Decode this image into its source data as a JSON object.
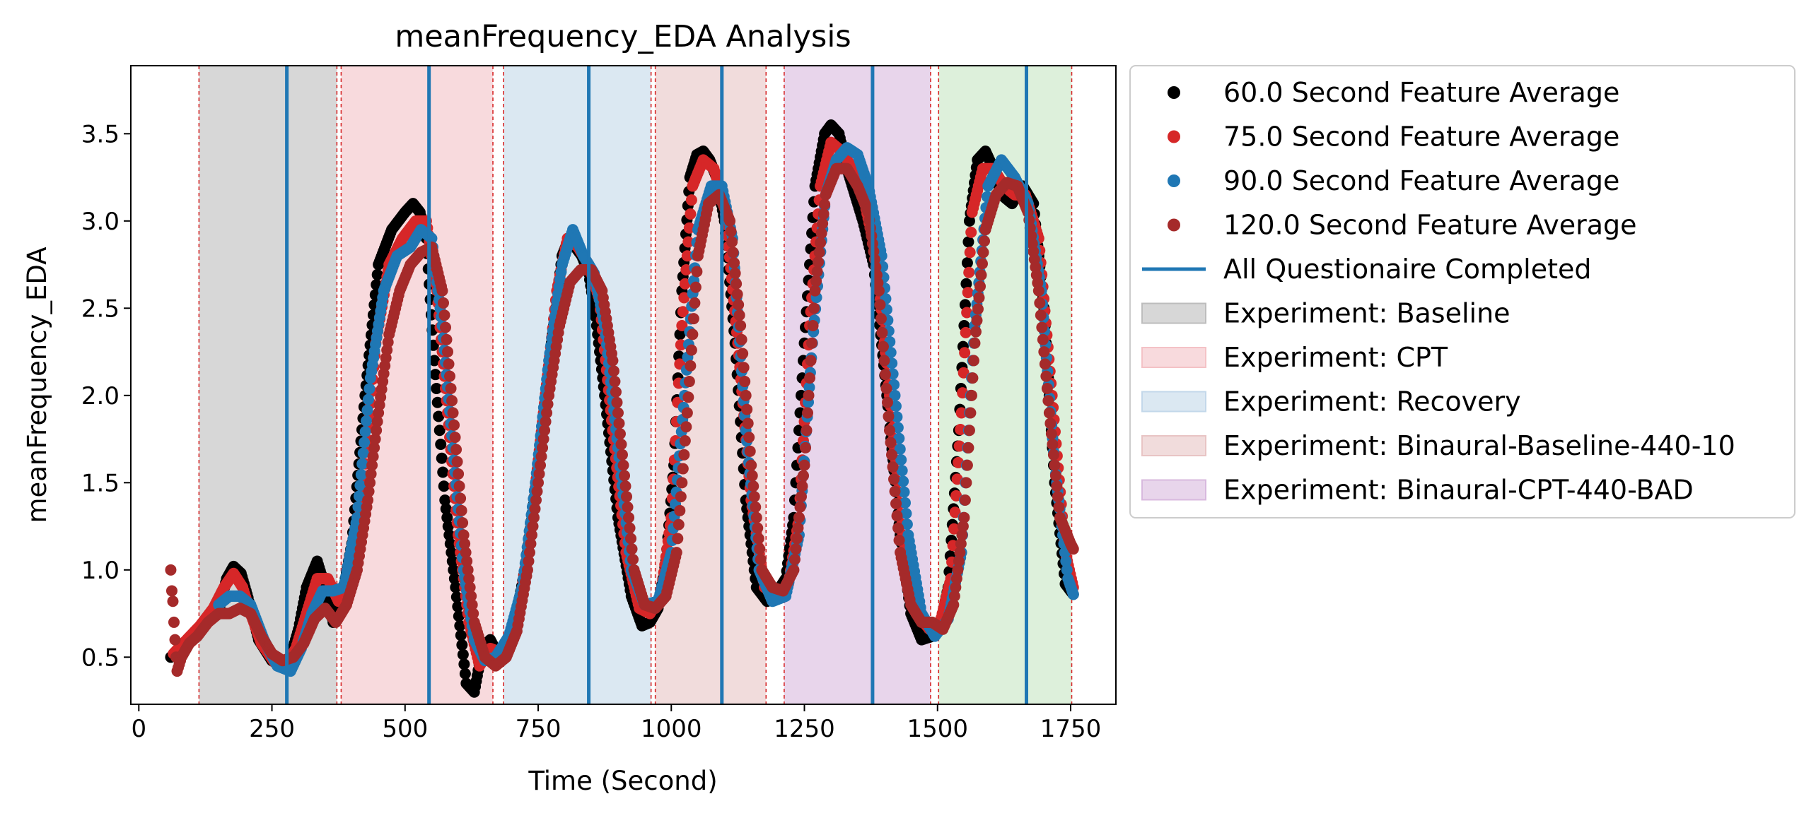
{
  "chart_data": {
    "type": "scatter",
    "title": "meanFrequency_EDA Analysis",
    "xlabel": "Time (Second)",
    "ylabel": "meanFrequency_EDA",
    "xlim": [
      -15,
      1835
    ],
    "ylim": [
      0.23,
      3.89
    ],
    "x_ticks": [
      0,
      250,
      500,
      750,
      1000,
      1250,
      1500,
      1750
    ],
    "x_tick_labels": [
      "0",
      "250",
      "500",
      "750",
      "1000",
      "1250",
      "1500",
      "1750"
    ],
    "y_ticks": [
      0.5,
      1.0,
      1.5,
      2.0,
      2.5,
      3.0,
      3.5
    ],
    "y_tick_labels": [
      "0.5",
      "1.0",
      "1.5",
      "2.0",
      "2.5",
      "3.0",
      "3.5"
    ],
    "grid": false,
    "legend_position": "outside-right",
    "regions": [
      {
        "label": "Experiment: Baseline",
        "start": 113,
        "end": 372,
        "color": "#bdbdbd"
      },
      {
        "label": "Experiment: CPT",
        "start": 380,
        "end": 665,
        "color": "#f4c2c6"
      },
      {
        "label": "Experiment: Recovery",
        "start": 685,
        "end": 962,
        "color": "#c3d8ea"
      },
      {
        "label": "Experiment: Binaural-Baseline-440-10",
        "start": 970,
        "end": 1178,
        "color": "#e8c4c4"
      },
      {
        "label": "Experiment: Binaural-CPT-440-BAD",
        "start": 1212,
        "end": 1487,
        "color": "#d8b9de"
      },
      {
        "label": "",
        "start": 1502,
        "end": 1752,
        "color": "#c7e6c3"
      }
    ],
    "region_boundaries": [
      113,
      372,
      380,
      665,
      685,
      962,
      970,
      1178,
      1212,
      1487,
      1502,
      1752
    ],
    "questionnaire_completed_x": [
      278,
      545,
      845,
      1095,
      1378,
      1667
    ],
    "series": [
      {
        "name": "60.0 Second Feature Average",
        "color": "#000000",
        "x": [
          60,
          90,
          110,
          135,
          150,
          165,
          178,
          192,
          205,
          225,
          250,
          270,
          285,
          300,
          315,
          335,
          350,
          365,
          380,
          400,
          425,
          450,
          475,
          500,
          515,
          528,
          540,
          555,
          575,
          595,
          615,
          630,
          645,
          660,
          680,
          700,
          725,
          750,
          775,
          795,
          808,
          820,
          832,
          845,
          858,
          875,
          900,
          925,
          945,
          960,
          975,
          990,
          1005,
          1020,
          1035,
          1048,
          1060,
          1072,
          1085,
          1100,
          1120,
          1140,
          1160,
          1180,
          1200,
          1215,
          1230,
          1250,
          1270,
          1288,
          1300,
          1315,
          1330,
          1345,
          1360,
          1380,
          1405,
          1430,
          1450,
          1470,
          1490,
          1505,
          1520,
          1540,
          1560,
          1575,
          1590,
          1605,
          1620,
          1640,
          1660,
          1680,
          1700,
          1720,
          1740,
          1755
        ],
        "y": [
          0.5,
          0.58,
          0.65,
          0.72,
          0.76,
          0.95,
          1.02,
          0.98,
          0.84,
          0.6,
          0.48,
          0.45,
          0.5,
          0.66,
          0.9,
          1.05,
          0.9,
          0.7,
          0.82,
          1.15,
          2.0,
          2.75,
          2.95,
          3.05,
          3.1,
          3.05,
          2.9,
          2.2,
          1.4,
          0.9,
          0.35,
          0.3,
          0.55,
          0.6,
          0.48,
          0.6,
          1.0,
          1.6,
          2.3,
          2.8,
          2.9,
          2.85,
          2.8,
          2.7,
          2.45,
          2.0,
          1.3,
          0.85,
          0.68,
          0.7,
          0.78,
          1.05,
          1.6,
          2.6,
          3.25,
          3.38,
          3.4,
          3.35,
          3.25,
          3.0,
          2.3,
          1.4,
          0.9,
          0.82,
          0.88,
          0.95,
          1.3,
          2.3,
          3.2,
          3.5,
          3.55,
          3.5,
          3.3,
          3.15,
          3.0,
          2.75,
          2.0,
          1.2,
          0.75,
          0.6,
          0.62,
          0.68,
          0.9,
          1.8,
          3.0,
          3.35,
          3.4,
          3.3,
          3.15,
          3.1,
          3.2,
          3.1,
          2.5,
          1.5,
          0.92,
          0.86
        ]
      },
      {
        "name": "75.0 Second Feature Average",
        "color": "#d62728",
        "x": [
          65,
          90,
          115,
          140,
          160,
          178,
          195,
          210,
          230,
          255,
          275,
          295,
          315,
          335,
          355,
          375,
          395,
          420,
          445,
          470,
          495,
          520,
          540,
          560,
          580,
          600,
          620,
          640,
          660,
          685,
          710,
          735,
          760,
          785,
          805,
          825,
          845,
          865,
          890,
          915,
          940,
          960,
          980,
          1000,
          1020,
          1040,
          1060,
          1080,
          1100,
          1125,
          1150,
          1175,
          1200,
          1220,
          1240,
          1260,
          1280,
          1300,
          1320,
          1340,
          1360,
          1385,
          1410,
          1435,
          1460,
          1485,
          1505,
          1525,
          1545,
          1565,
          1585,
          1605,
          1625,
          1645,
          1665,
          1690,
          1715,
          1740,
          1755
        ],
        "y": [
          0.52,
          0.6,
          0.68,
          0.78,
          0.9,
          0.98,
          0.9,
          0.75,
          0.58,
          0.47,
          0.45,
          0.55,
          0.75,
          0.95,
          0.95,
          0.82,
          0.95,
          1.4,
          2.3,
          2.75,
          2.9,
          3.0,
          3.0,
          2.6,
          1.9,
          1.2,
          0.7,
          0.45,
          0.55,
          0.52,
          0.7,
          1.2,
          1.9,
          2.6,
          2.9,
          2.85,
          2.75,
          2.55,
          1.8,
          1.1,
          0.78,
          0.75,
          0.85,
          1.3,
          2.4,
          3.2,
          3.35,
          3.3,
          3.1,
          2.3,
          1.4,
          0.9,
          0.85,
          0.92,
          1.3,
          2.4,
          3.2,
          3.45,
          3.4,
          3.3,
          3.15,
          2.8,
          2.0,
          1.2,
          0.75,
          0.66,
          0.7,
          0.95,
          1.9,
          3.05,
          3.3,
          3.3,
          3.2,
          3.15,
          3.15,
          2.9,
          2.0,
          1.1,
          0.9
        ]
      },
      {
        "name": "90.0 Second Feature Average",
        "color": "#1f77b4",
        "x": [
          150,
          170,
          190,
          210,
          235,
          260,
          285,
          305,
          325,
          345,
          365,
          385,
          410,
          435,
          460,
          485,
          510,
          530,
          550,
          570,
          590,
          610,
          630,
          650,
          670,
          695,
          720,
          745,
          770,
          795,
          815,
          835,
          855,
          875,
          900,
          925,
          950,
          975,
          1000,
          1025,
          1050,
          1075,
          1095,
          1115,
          1140,
          1165,
          1190,
          1215,
          1240,
          1265,
          1290,
          1310,
          1330,
          1350,
          1370,
          1395,
          1420,
          1445,
          1470,
          1495,
          1520,
          1545,
          1570,
          1595,
          1620,
          1645,
          1670,
          1695,
          1720,
          1745,
          1755
        ],
        "y": [
          0.8,
          0.85,
          0.85,
          0.8,
          0.6,
          0.45,
          0.42,
          0.55,
          0.75,
          0.88,
          0.88,
          0.9,
          1.3,
          2.1,
          2.6,
          2.8,
          2.85,
          2.95,
          2.9,
          2.4,
          1.7,
          1.0,
          0.6,
          0.48,
          0.5,
          0.62,
          0.9,
          1.5,
          2.2,
          2.75,
          2.95,
          2.8,
          2.7,
          2.4,
          1.7,
          1.0,
          0.8,
          0.82,
          1.1,
          2.0,
          2.95,
          3.2,
          3.2,
          2.9,
          1.8,
          1.0,
          0.82,
          0.85,
          1.2,
          2.3,
          3.15,
          3.35,
          3.42,
          3.38,
          3.2,
          2.8,
          2.0,
          1.2,
          0.75,
          0.62,
          0.72,
          1.1,
          2.4,
          3.2,
          3.35,
          3.25,
          3.1,
          2.6,
          1.6,
          0.95,
          0.86
        ]
      },
      {
        "name": "120.0 Second Feature Average",
        "color": "#a52a2a",
        "x": [
          60,
          62,
          64,
          66,
          68,
          70,
          72,
          80,
          95,
          110,
          130,
          150,
          170,
          190,
          210,
          230,
          250,
          270,
          290,
          310,
          330,
          350,
          370,
          390,
          410,
          430,
          450,
          470,
          490,
          510,
          530,
          550,
          570,
          590,
          610,
          630,
          650,
          670,
          690,
          710,
          730,
          750,
          770,
          790,
          810,
          830,
          850,
          870,
          890,
          910,
          930,
          950,
          970,
          990,
          1010,
          1030,
          1050,
          1070,
          1090,
          1110,
          1130,
          1150,
          1170,
          1190,
          1210,
          1230,
          1250,
          1270,
          1290,
          1310,
          1330,
          1350,
          1370,
          1390,
          1410,
          1430,
          1450,
          1470,
          1490,
          1510,
          1530,
          1550,
          1570,
          1590,
          1610,
          1630,
          1650,
          1670,
          1690,
          1710,
          1730,
          1750,
          1755
        ],
        "y": [
          1.0,
          0.88,
          0.82,
          0.7,
          0.6,
          0.5,
          0.42,
          0.5,
          0.58,
          0.62,
          0.7,
          0.75,
          0.75,
          0.78,
          0.75,
          0.62,
          0.52,
          0.48,
          0.5,
          0.58,
          0.72,
          0.78,
          0.7,
          0.8,
          1.0,
          1.4,
          1.9,
          2.35,
          2.6,
          2.75,
          2.82,
          2.85,
          2.6,
          1.9,
          1.2,
          0.7,
          0.5,
          0.45,
          0.5,
          0.65,
          1.0,
          1.5,
          2.0,
          2.4,
          2.65,
          2.72,
          2.72,
          2.6,
          2.2,
          1.6,
          1.0,
          0.8,
          0.78,
          0.85,
          1.1,
          1.9,
          2.8,
          3.1,
          3.15,
          3.0,
          2.4,
          1.6,
          1.0,
          0.9,
          0.88,
          1.0,
          1.6,
          2.6,
          3.15,
          3.3,
          3.3,
          3.2,
          3.05,
          2.6,
          1.8,
          1.1,
          0.8,
          0.7,
          0.7,
          0.66,
          0.8,
          1.3,
          2.3,
          2.95,
          3.15,
          3.22,
          3.2,
          3.05,
          2.6,
          1.9,
          1.3,
          1.15,
          1.12
        ]
      }
    ],
    "legend": [
      {
        "kind": "marker",
        "label": "60.0 Second Feature Average",
        "color": "#000000"
      },
      {
        "kind": "marker",
        "label": "75.0 Second Feature Average",
        "color": "#d62728"
      },
      {
        "kind": "marker",
        "label": "90.0 Second Feature Average",
        "color": "#1f77b4"
      },
      {
        "kind": "marker",
        "label": "120.0 Second Feature Average",
        "color": "#a52a2a"
      },
      {
        "kind": "line",
        "label": "All Questionaire Completed",
        "color": "#1f77b4"
      },
      {
        "kind": "patch",
        "label": "Experiment: Baseline",
        "color": "#bdbdbd"
      },
      {
        "kind": "patch",
        "label": "Experiment: CPT",
        "color": "#f4c2c6"
      },
      {
        "kind": "patch",
        "label": "Experiment: Recovery",
        "color": "#c3d8ea"
      },
      {
        "kind": "patch",
        "label": "Experiment: Binaural-Baseline-440-10",
        "color": "#e8c4c4"
      },
      {
        "kind": "patch",
        "label": "Experiment: Binaural-CPT-440-BAD",
        "color": "#d8b9de"
      }
    ]
  }
}
